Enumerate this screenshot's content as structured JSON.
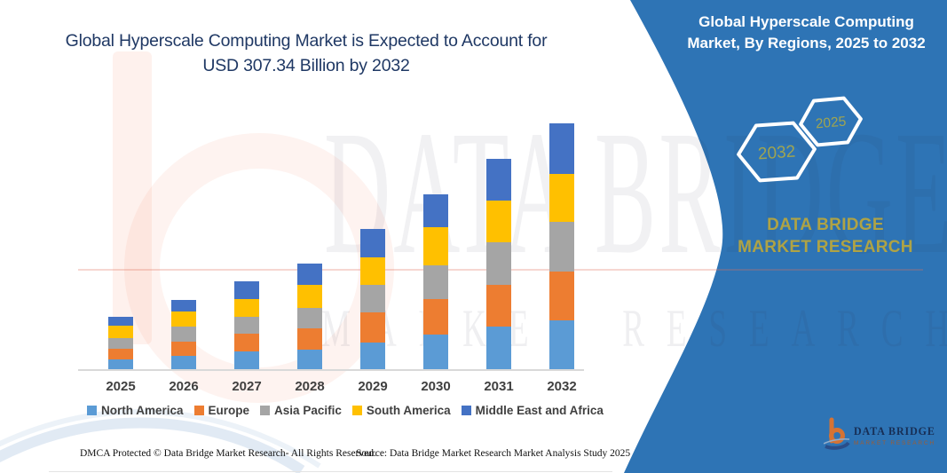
{
  "title": {
    "line1": "Global Hyperscale Computing Market is Expected to Account for",
    "line2": "USD 307.34 Billion by 2032"
  },
  "panel": {
    "heading_line1": "Global Hyperscale Computing",
    "heading_line2": "Market, By Regions, 2025 to 2032",
    "hexagons": [
      {
        "label": "2032"
      },
      {
        "label": "2025"
      }
    ],
    "brand_text": "DATA BRIDGE MARKET RESEARCH",
    "accent_blue": "#2E74B5",
    "olive_text_color": "#AFA345",
    "hex_label_color": "#9FA451"
  },
  "watermark": {
    "line1": "DATA BRIDGE",
    "line2": "MARKET RESEARCH"
  },
  "logo": {
    "brand": "DATA BRIDGE",
    "tagline": "MARKET RESEARCH"
  },
  "footer": {
    "dmca": "DMCA Protected © Data Bridge Market Research-  All Rights Reserved.",
    "source": "Source: Data Bridge Market Research  Market Analysis Study 2025"
  },
  "chart_data": {
    "type": "bar",
    "stacked": true,
    "title": "Global Hyperscale Computing Market is Expected to Account for USD 307.34 Billion by 2032",
    "unit": "USD billion, estimated from bar heights (2032 total = 307.34 per title)",
    "categories": [
      "2025",
      "2026",
      "2027",
      "2028",
      "2029",
      "2030",
      "2031",
      "2032"
    ],
    "series": [
      {
        "name": "North America",
        "color": "#5B9BD5",
        "values": [
          12.2,
          16.6,
          22.2,
          24.4,
          33.6,
          43.6,
          52.9,
          61.5
        ]
      },
      {
        "name": "Europe",
        "color": "#ED7D31",
        "values": [
          13.6,
          17.8,
          22.2,
          26.6,
          36.9,
          43.6,
          52.5,
          61.0
        ]
      },
      {
        "name": "Asia Pacific",
        "color": "#A5A5A5",
        "values": [
          13.3,
          18.5,
          21.4,
          25.9,
          35.2,
          42.5,
          52.9,
          62.0
        ]
      },
      {
        "name": "South America",
        "color": "#FFC000",
        "values": [
          15.2,
          18.9,
          22.2,
          28.8,
          34.1,
          48.0,
          52.9,
          60.0
        ]
      },
      {
        "name": "Middle East and Africa",
        "color": "#4472C4",
        "values": [
          10.7,
          15.2,
          21.4,
          26.6,
          35.8,
          40.7,
          51.8,
          62.8
        ]
      }
    ],
    "totals_estimated": [
      65.0,
      87.0,
      109.4,
      132.3,
      175.6,
      218.4,
      263.0,
      307.3
    ],
    "stack_order": "bottom to top as listed",
    "legend_position": "bottom",
    "axes": {
      "x_labels_visible": true,
      "y_axis_visible": false,
      "gridlines": false
    }
  }
}
